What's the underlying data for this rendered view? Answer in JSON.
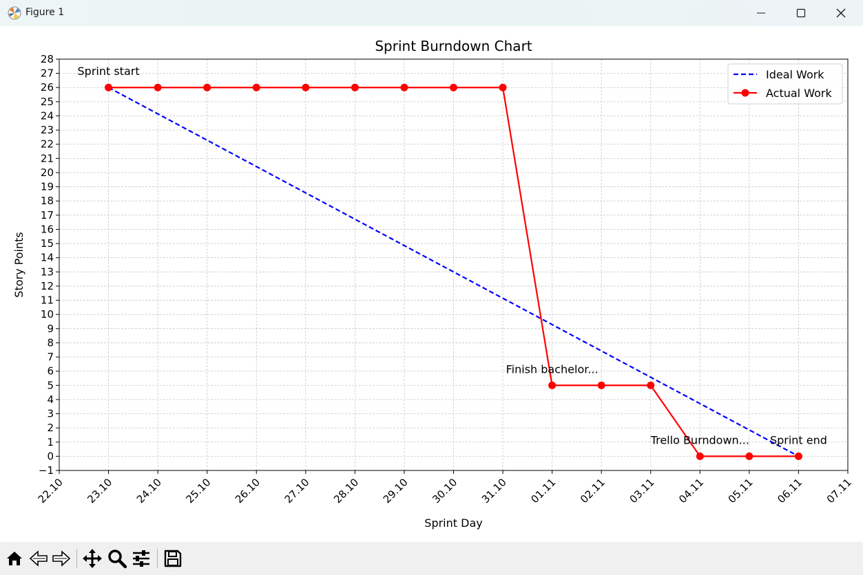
{
  "window": {
    "title": "Figure 1",
    "icon": "matplotlib-icon"
  },
  "toolbar": {
    "buttons": [
      "home-icon",
      "back-icon",
      "forward-icon",
      "pan-icon",
      "zoom-icon",
      "configure-subplots-icon",
      "save-icon"
    ]
  },
  "colors": {
    "ideal": "#0000ff",
    "actual": "#ff0000",
    "grid": "#c8c8c8"
  },
  "chart_data": {
    "type": "line",
    "title": "Sprint Burndown Chart",
    "xlabel": "Sprint Day",
    "ylabel": "Story Points",
    "x_ticks": [
      "22.10",
      "23.10",
      "24.10",
      "25.10",
      "26.10",
      "27.10",
      "28.10",
      "29.10",
      "30.10",
      "31.10",
      "01.11",
      "02.11",
      "03.11",
      "04.11",
      "05.11",
      "06.11",
      "07.11"
    ],
    "ylim": [
      -1,
      28
    ],
    "y_ticks": [
      -1,
      0,
      1,
      2,
      3,
      4,
      5,
      6,
      7,
      8,
      9,
      10,
      11,
      12,
      13,
      14,
      15,
      16,
      17,
      18,
      19,
      20,
      21,
      22,
      23,
      24,
      25,
      26,
      27,
      28
    ],
    "grid": true,
    "legend_position": "upper right",
    "series": [
      {
        "name": "Ideal Work",
        "style": "dashed",
        "x": [
          "23.10",
          "06.11"
        ],
        "y": [
          26,
          0
        ]
      },
      {
        "name": "Actual Work",
        "style": "solid-with-markers",
        "x": [
          "23.10",
          "24.10",
          "25.10",
          "26.10",
          "27.10",
          "28.10",
          "29.10",
          "30.10",
          "31.10",
          "01.11",
          "02.11",
          "03.11",
          "04.11",
          "05.11",
          "06.11"
        ],
        "y": [
          26,
          26,
          26,
          26,
          26,
          26,
          26,
          26,
          26,
          5,
          5,
          5,
          0,
          0,
          0
        ]
      }
    ],
    "annotations": [
      {
        "text": "Sprint start",
        "x": "23.10",
        "y": 26
      },
      {
        "text": "Finish bachelor...",
        "x": "01.11",
        "y": 5
      },
      {
        "text": "Trello Burndown...",
        "x": "04.11",
        "y": 0
      },
      {
        "text": "Sprint end",
        "x": "06.11",
        "y": 0
      }
    ]
  }
}
